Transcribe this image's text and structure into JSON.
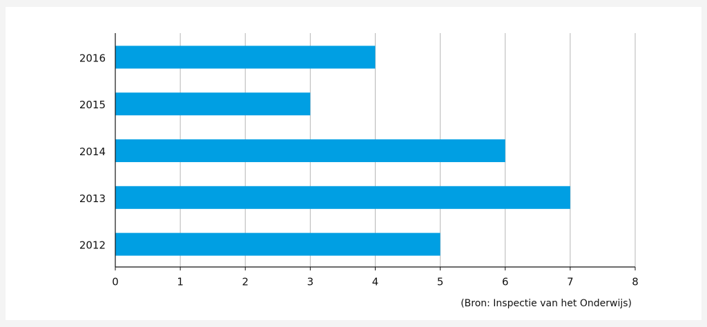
{
  "chart_data": {
    "type": "hbar",
    "categories": [
      "2016",
      "2015",
      "2014",
      "2013",
      "2012"
    ],
    "values": [
      4,
      3,
      6,
      7,
      5
    ],
    "color": "#009fe3",
    "xlim": [
      0,
      8
    ],
    "xticks": [
      0,
      1,
      2,
      3,
      4,
      5,
      6,
      7,
      8
    ],
    "grid": true,
    "source": "(Bron: Inspectie van het Onderwijs)"
  }
}
